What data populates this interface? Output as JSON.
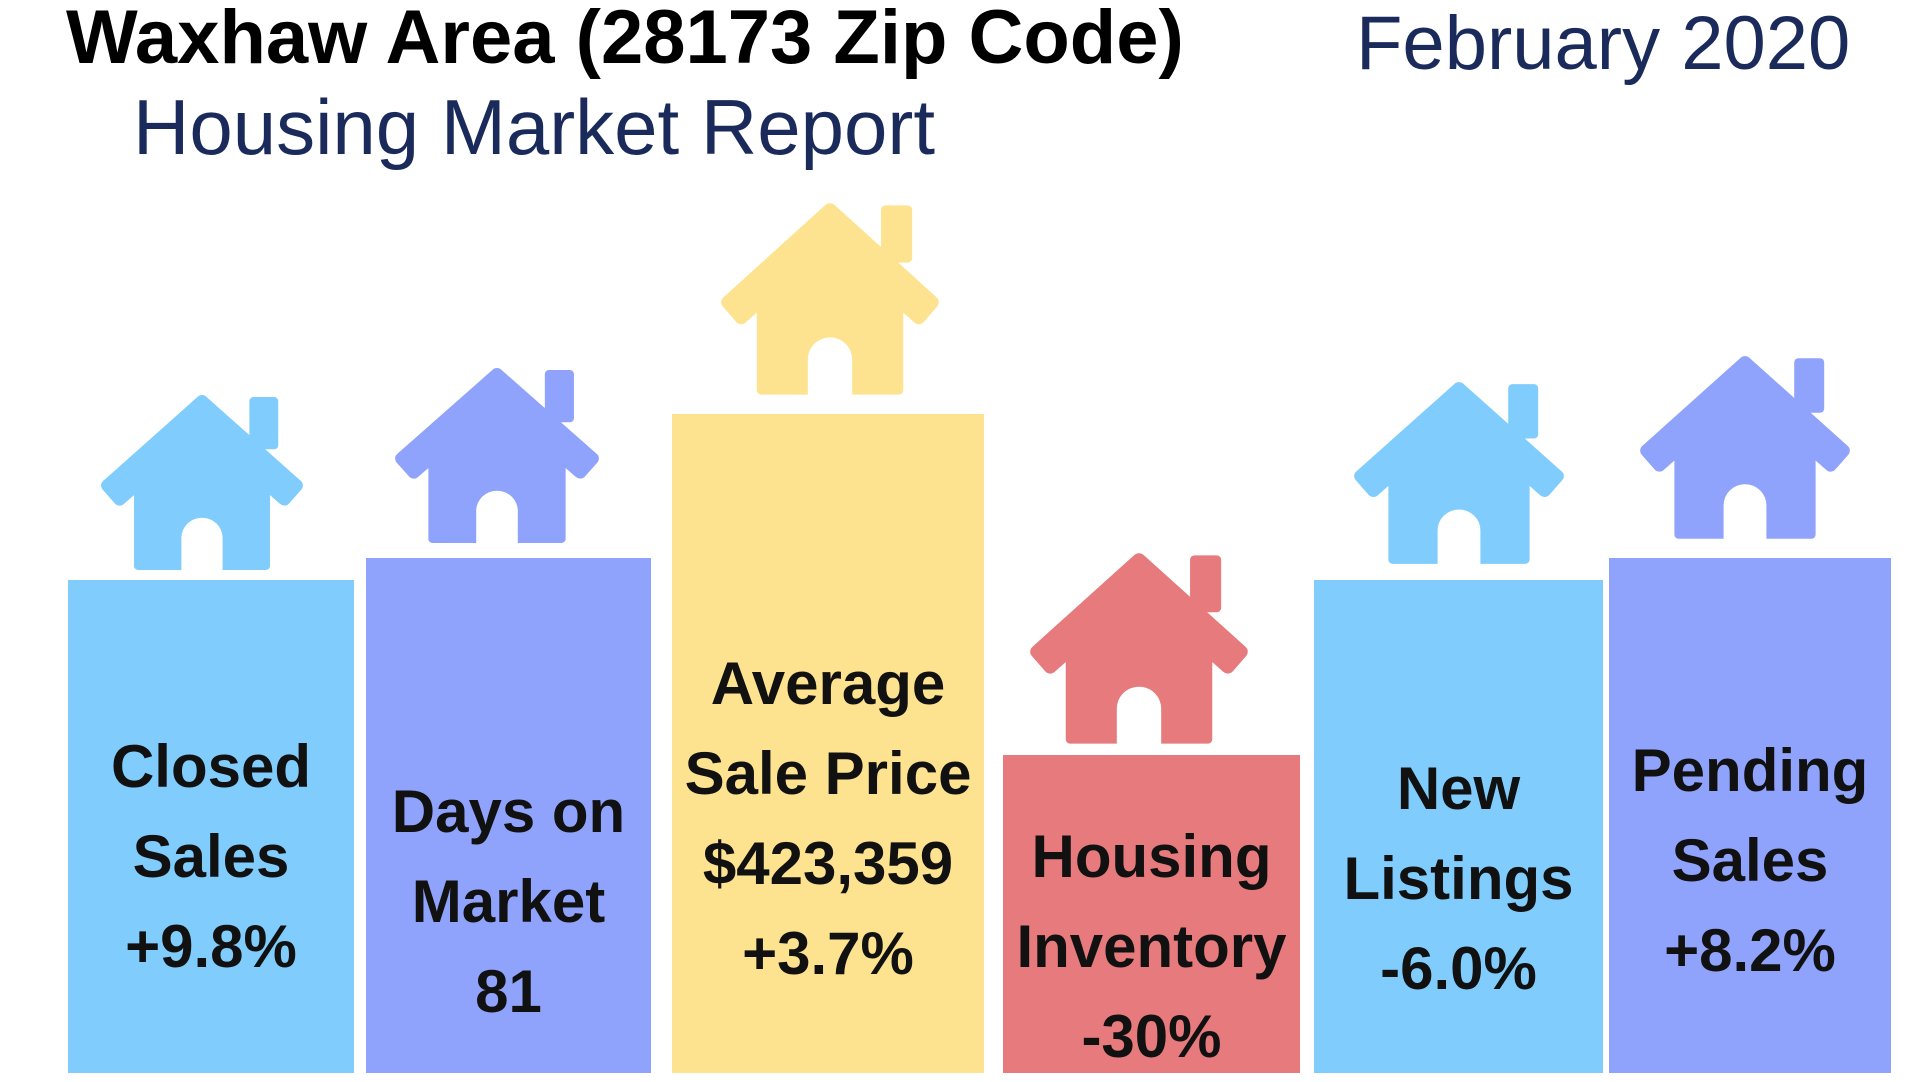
{
  "header": {
    "title": "Waxhaw Area (28173 Zip Code)",
    "date": "February 2020",
    "subtitle": "Housing Market Report"
  },
  "tiles": [
    {
      "label": [
        "Closed",
        "Sales"
      ],
      "values": [
        "+9.8%"
      ]
    },
    {
      "label": [
        "Days on",
        "Market"
      ],
      "values": [
        "81"
      ]
    },
    {
      "label": [
        "Average",
        "Sale Price"
      ],
      "values": [
        "$423,359",
        "+3.7%"
      ]
    },
    {
      "label": [
        "Housing",
        "Inventory"
      ],
      "values": [
        "-30%"
      ]
    },
    {
      "label": [
        "New",
        "Listings"
      ],
      "values": [
        "-6.0%"
      ]
    },
    {
      "label": [
        "Pending",
        "Sales"
      ],
      "values": [
        "+8.2%"
      ]
    }
  ]
}
